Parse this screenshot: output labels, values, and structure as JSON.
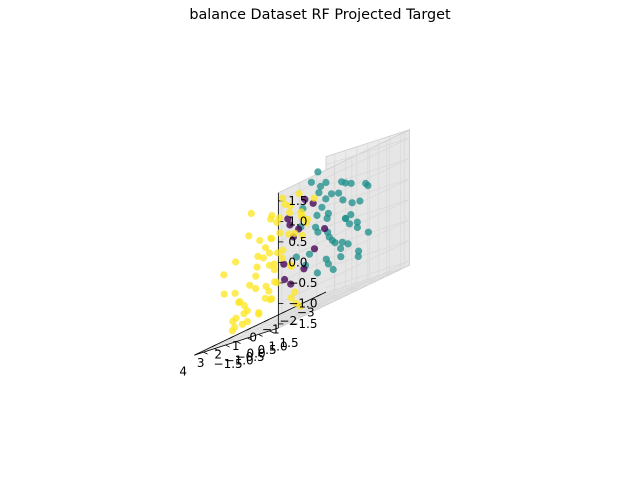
{
  "chart_data": {
    "type": "scatter",
    "title": "balance Dataset RF Projected Target",
    "xlabel": "",
    "ylabel": "",
    "zlabel": "",
    "xlim": [
      -3.3,
      4.2
    ],
    "ylim": [
      -1.9,
      1.9
    ],
    "zlim": [
      -1.6,
      1.7
    ],
    "grid": true,
    "x_ticks": [
      "−3",
      "−2",
      "−1",
      "0",
      "1",
      "2",
      "3",
      "4"
    ],
    "y_ticks": [
      "−1.5",
      "−1.0",
      "−0.5",
      "0.0",
      "0.5",
      "1.0",
      "1.5"
    ],
    "z_ticks": [
      "−1.5",
      "−1.0",
      "−0.5",
      "0.0",
      "0.5",
      "1.0",
      "1.5"
    ],
    "colors": {
      "class_0": "#440154",
      "class_1": "#21918c",
      "class_2": "#fde725",
      "pane": "#f2f2f2",
      "grid": "#d9d9d9"
    },
    "series": [
      {
        "values": [
          [
            0.2,
            0.3,
            0.9
          ],
          [
            0.8,
            0.4,
            1.1
          ],
          [
            0.4,
            -0.2,
            0.4
          ],
          [
            1.2,
            0.2,
            0.3
          ],
          [
            0.5,
            0.6,
            -0.2
          ],
          [
            1.0,
            -0.4,
            -0.3
          ],
          [
            0.1,
            -0.8,
            -0.9
          ],
          [
            0.7,
            -0.6,
            -0.7
          ],
          [
            0.3,
            0.9,
            0.2
          ],
          [
            1.4,
            0.1,
            0.8
          ],
          [
            0.6,
            0.2,
            -0.6
          ],
          [
            0.9,
            -0.2,
            0.6
          ]
        ]
      },
      {
        "values": [
          [
            -2.6,
            0.2,
            0.4
          ],
          [
            -2.4,
            -0.3,
            0.1
          ],
          [
            -2.2,
            0.4,
            -0.2
          ],
          [
            -2.0,
            -0.1,
            0.6
          ],
          [
            -1.8,
            0.3,
            -0.5
          ],
          [
            -1.6,
            -0.5,
            0.3
          ],
          [
            -1.5,
            0.6,
            0.0
          ],
          [
            -1.3,
            -0.2,
            -0.8
          ],
          [
            -1.1,
            0.1,
            0.9
          ],
          [
            -0.9,
            -0.4,
            0.5
          ],
          [
            -0.8,
            0.5,
            -0.3
          ],
          [
            -0.6,
            0.0,
            1.2
          ],
          [
            -0.5,
            -0.6,
            -0.6
          ],
          [
            -0.3,
            0.3,
            0.7
          ],
          [
            -0.2,
            -0.1,
            1.4
          ],
          [
            0.0,
            0.4,
            1.1
          ],
          [
            -2.5,
            -0.6,
            -0.6
          ],
          [
            -2.3,
            0.7,
            0.8
          ],
          [
            -2.1,
            -0.8,
            -0.2
          ],
          [
            -1.9,
            0.1,
            1.0
          ],
          [
            -1.7,
            -0.3,
            -1.0
          ],
          [
            -1.4,
            0.8,
            0.5
          ],
          [
            -1.2,
            -0.7,
            0.2
          ],
          [
            -1.0,
            0.6,
            -0.7
          ],
          [
            -0.7,
            -0.2,
            0.1
          ],
          [
            -0.4,
            0.7,
            -0.2
          ],
          [
            -0.1,
            -0.5,
            0.4
          ],
          [
            -2.7,
            0.0,
            -0.1
          ],
          [
            -2.8,
            0.4,
            0.7
          ],
          [
            -1.6,
            0.2,
            -0.4
          ],
          [
            -1.1,
            -0.9,
            -0.4
          ],
          [
            -0.9,
            0.9,
            0.2
          ],
          [
            -0.6,
            -0.8,
            0.8
          ],
          [
            -0.3,
            0.5,
            -0.6
          ],
          [
            -2.0,
            0.6,
            -0.9
          ],
          [
            -1.4,
            -0.4,
            0.8
          ],
          [
            0.1,
            0.8,
            1.3
          ],
          [
            -0.2,
            0.2,
            1.6
          ],
          [
            -1.8,
            -0.6,
            0.4
          ],
          [
            -2.2,
            0.9,
            -0.4
          ],
          [
            -1.3,
            0.4,
            1.1
          ],
          [
            -0.8,
            -0.3,
            -0.9
          ],
          [
            -2.4,
            0.3,
            -0.8
          ],
          [
            -0.5,
            0.9,
            0.9
          ],
          [
            -1.0,
            0.0,
            0.0
          ],
          [
            -1.7,
            0.5,
            0.2
          ],
          [
            -2.6,
            -0.2,
            0.9
          ],
          [
            -0.1,
            -0.7,
            -0.3
          ]
        ]
      },
      {
        "values": [
          [
            1.5,
            0.5,
            0.4
          ],
          [
            1.8,
            0.2,
            0.1
          ],
          [
            2.0,
            0.7,
            -0.3
          ],
          [
            2.2,
            0.0,
            0.5
          ],
          [
            2.4,
            0.4,
            -0.6
          ],
          [
            2.6,
            -0.3,
            0.2
          ],
          [
            2.8,
            0.6,
            -0.1
          ],
          [
            3.0,
            0.1,
            0.6
          ],
          [
            3.2,
            -0.2,
            -0.4
          ],
          [
            3.4,
            0.3,
            0.0
          ],
          [
            1.6,
            -0.6,
            -0.8
          ],
          [
            1.9,
            -0.3,
            -1.0
          ],
          [
            2.1,
            -0.8,
            -0.6
          ],
          [
            2.3,
            -0.5,
            -1.2
          ],
          [
            2.5,
            -1.0,
            -0.9
          ],
          [
            2.7,
            -0.7,
            -1.3
          ],
          [
            2.9,
            -1.1,
            -0.5
          ],
          [
            3.1,
            -0.9,
            -1.1
          ],
          [
            1.4,
            0.8,
            0.7
          ],
          [
            1.7,
            1.0,
            0.3
          ],
          [
            2.0,
            1.2,
            0.8
          ],
          [
            2.3,
            0.9,
            1.0
          ],
          [
            2.6,
            1.1,
            0.5
          ],
          [
            2.9,
            0.8,
            0.9
          ],
          [
            3.3,
            0.6,
            0.4
          ],
          [
            3.6,
            0.4,
            -0.2
          ],
          [
            3.8,
            0.9,
            0.2
          ],
          [
            1.2,
            -0.9,
            -0.2
          ],
          [
            1.0,
            -1.2,
            -0.7
          ],
          [
            0.8,
            -1.4,
            -1.0
          ],
          [
            1.3,
            -1.3,
            -1.3
          ],
          [
            1.7,
            -1.5,
            -1.1
          ],
          [
            2.0,
            -1.6,
            -0.8
          ],
          [
            0.6,
            -1.0,
            0.0
          ],
          [
            0.4,
            -1.3,
            -0.4
          ],
          [
            1.1,
            -0.5,
            0.5
          ],
          [
            1.5,
            -0.2,
            0.9
          ],
          [
            1.8,
            0.3,
            1.2
          ],
          [
            2.2,
            0.5,
            1.4
          ],
          [
            2.5,
            0.2,
            1.0
          ],
          [
            3.0,
            -0.4,
            0.8
          ],
          [
            3.5,
            -0.6,
            0.3
          ],
          [
            3.7,
            -0.3,
            -0.7
          ],
          [
            3.9,
            0.1,
            -1.0
          ],
          [
            3.3,
            -0.8,
            -1.3
          ],
          [
            2.8,
            -1.3,
            -1.4
          ],
          [
            2.4,
            -1.6,
            -1.2
          ],
          [
            1.6,
            -1.8,
            -1.4
          ],
          [
            1.2,
            0.1,
            -0.4
          ],
          [
            1.9,
            -0.1,
            -0.6
          ],
          [
            2.7,
            0.3,
            0.2
          ],
          [
            0.9,
            0.6,
            0.6
          ],
          [
            1.4,
            1.3,
            1.1
          ],
          [
            2.1,
            1.5,
            0.6
          ],
          [
            3.1,
            1.2,
            0.0
          ],
          [
            3.5,
            1.0,
            0.6
          ],
          [
            0.7,
            -0.3,
            -1.2
          ],
          [
            1.0,
            0.3,
            1.3
          ],
          [
            2.6,
            -0.6,
            1.3
          ],
          [
            3.4,
            -1.2,
            -0.4
          ],
          [
            0.3,
            -0.2,
            -1.5
          ],
          [
            2.0,
            0.9,
            -1.0
          ],
          [
            1.3,
            -0.7,
            1.0
          ],
          [
            3.8,
            -0.9,
            0.1
          ],
          [
            2.9,
            1.4,
            1.2
          ],
          [
            1.7,
            0.7,
            -1.3
          ],
          [
            0.5,
            0.0,
            0.8
          ],
          [
            3.2,
            0.8,
            -0.9
          ]
        ]
      }
    ]
  }
}
